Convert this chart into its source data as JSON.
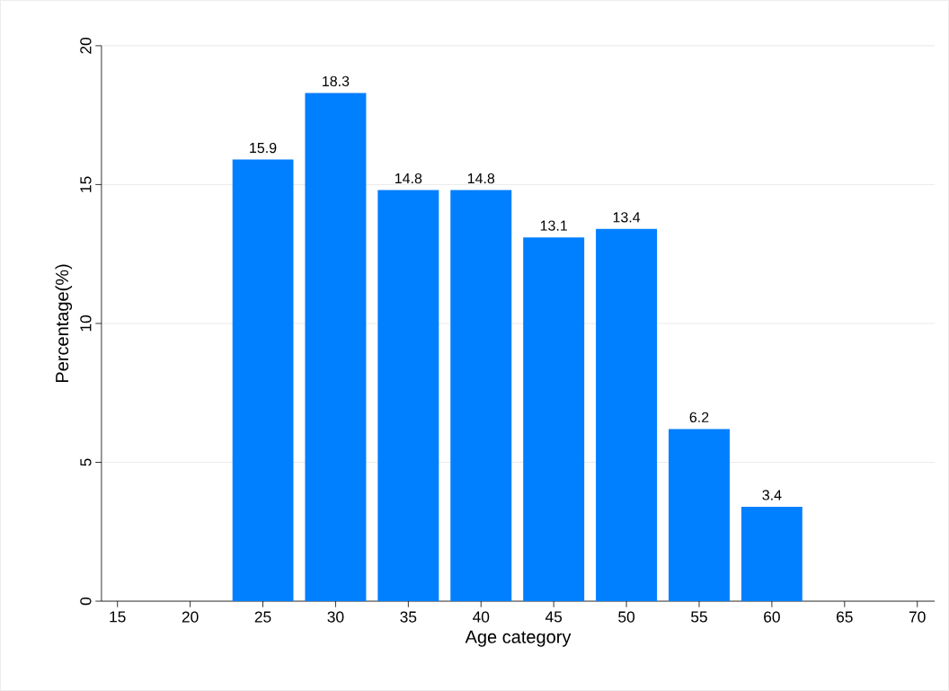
{
  "chart_data": {
    "type": "bar",
    "xlabel": "Age category",
    "ylabel": "Percentage(%)",
    "x": [
      25,
      30,
      35,
      40,
      45,
      50,
      55,
      60
    ],
    "values": [
      15.9,
      18.3,
      14.8,
      14.8,
      13.1,
      13.4,
      6.2,
      3.4
    ],
    "color": "#007fff",
    "xlim": [
      13.9,
      71.2
    ],
    "xticks": [
      15,
      20,
      25,
      30,
      35,
      40,
      45,
      50,
      55,
      60,
      65,
      70
    ],
    "ylim": [
      0,
      20
    ],
    "yticks": [
      0,
      5,
      10,
      15,
      20
    ],
    "grid": "y",
    "data_labels": true
  }
}
